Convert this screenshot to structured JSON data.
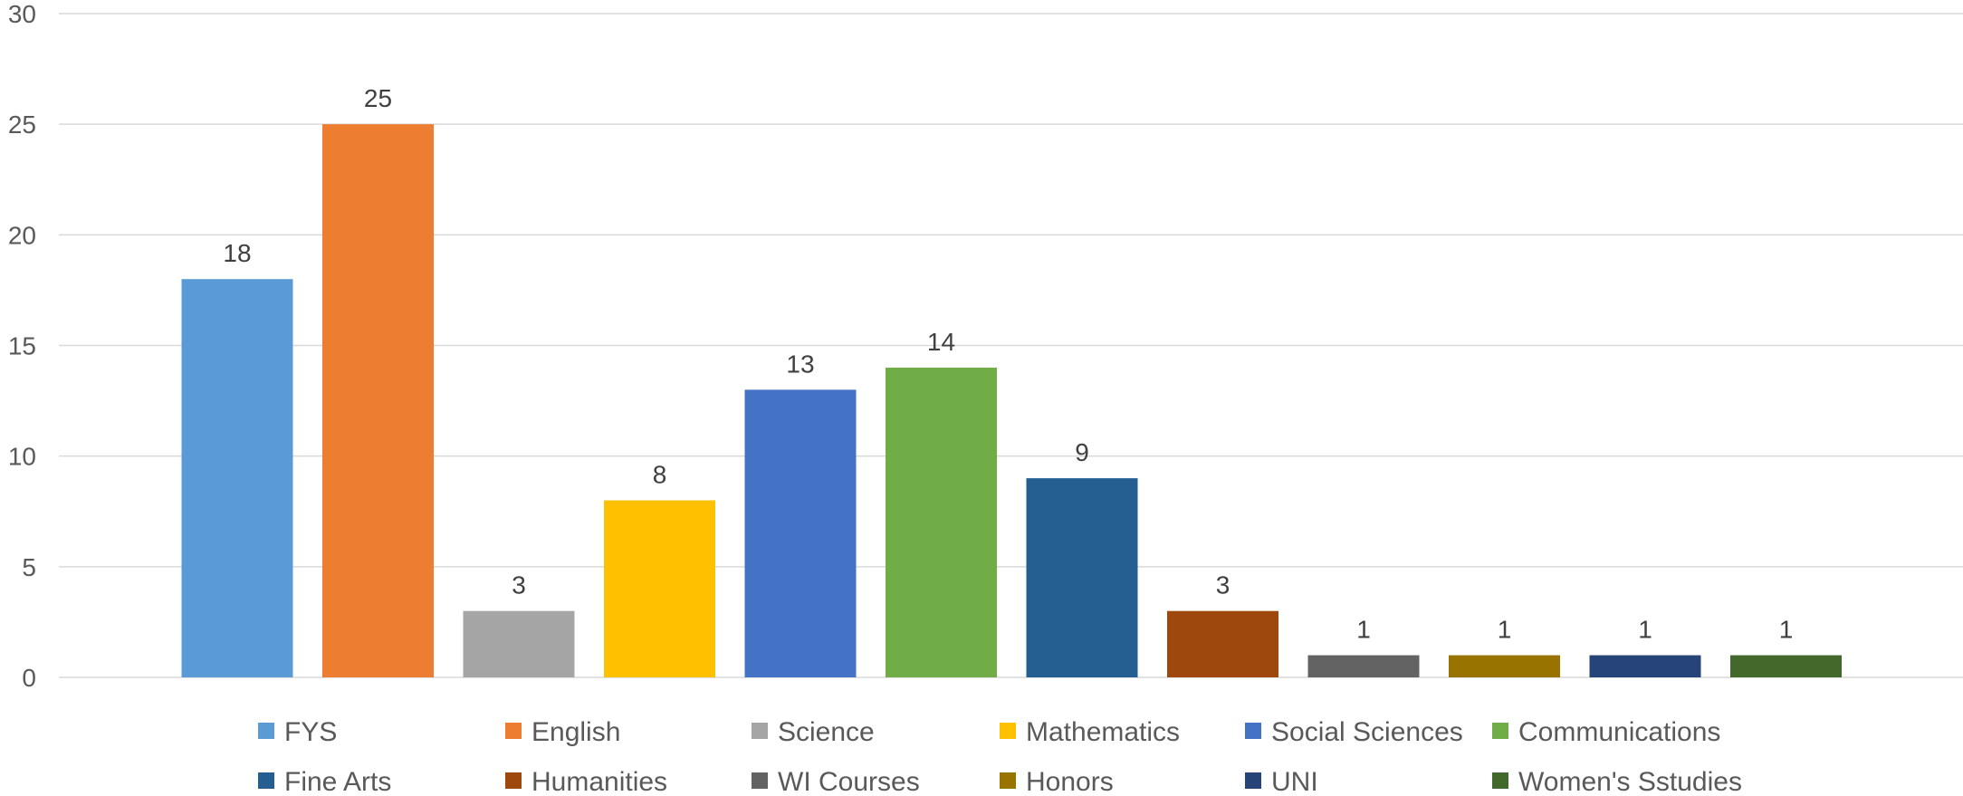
{
  "chart_data": {
    "type": "bar",
    "categories": [
      "FYS",
      "English",
      "Science",
      "Mathematics",
      "Social Sciences",
      "Communications",
      "Fine Arts",
      "Humanities",
      "WI Courses",
      "Honors",
      "UNI",
      "Women's Sstudies"
    ],
    "values": [
      18,
      25,
      3,
      8,
      13,
      14,
      9,
      3,
      1,
      1,
      1,
      1
    ],
    "colors": [
      "#5B9BD5",
      "#ED7D31",
      "#A5A5A5",
      "#FFC000",
      "#4472C4",
      "#70AD47",
      "#255E91",
      "#9E480E",
      "#636363",
      "#997300",
      "#264478",
      "#43682B"
    ],
    "ylim": [
      0,
      30
    ],
    "yticks": [
      0,
      5,
      10,
      15,
      20,
      25,
      30
    ],
    "grid": true,
    "data_labels": true,
    "legend": "bottom",
    "title": "",
    "xlabel": "",
    "ylabel": ""
  }
}
